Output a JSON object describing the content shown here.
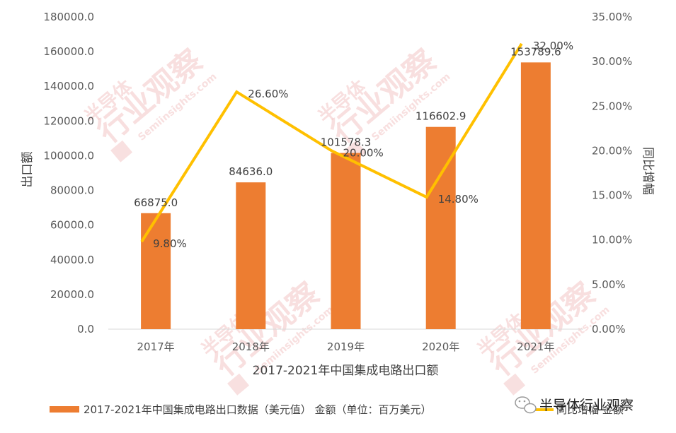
{
  "chart_data": {
    "type": "bar",
    "title": "",
    "categories": [
      "2017年",
      "2018年",
      "2019年",
      "2020年",
      "2021年"
    ],
    "series": [
      {
        "name": "2017-2021年中国集成电路出口数据（美元值） 金额（单位：百万美元）",
        "type": "bar",
        "axis": "left",
        "color": "#ed7d31",
        "values": [
          66875.0,
          84636.0,
          101578.3,
          116602.9,
          153789.6
        ],
        "labels": [
          "66875.0",
          "84636.0",
          "101578.3",
          "116602.9",
          "153789.6"
        ]
      },
      {
        "name": "同比增幅 金额",
        "type": "line",
        "axis": "right",
        "color": "#ffc000",
        "values": [
          9.8,
          26.6,
          20.0,
          14.8,
          32.0
        ],
        "labels": [
          "9.80%",
          "26.60%",
          "20.00%",
          "14.80%",
          "32.00%"
        ]
      }
    ],
    "xlabel": "2017-2021年中国集成电路出口额",
    "ylabel": "出口额",
    "y2label": "同比增幅",
    "ylim": [
      0,
      180000
    ],
    "y2lim": [
      0,
      35
    ],
    "yticks": [
      "0.0",
      "20000.0",
      "40000.0",
      "60000.0",
      "80000.0",
      "100000.0",
      "120000.0",
      "140000.0",
      "160000.0",
      "180000.0"
    ],
    "y2ticks": [
      "0.00%",
      "5.00%",
      "10.00%",
      "15.00%",
      "20.00%",
      "25.00%",
      "30.00%",
      "35.00%"
    ],
    "grid": false,
    "legend_position": "bottom"
  },
  "watermark": {
    "brand": "半导体",
    "title": "行业观察",
    "url": "Semiinsights.com"
  },
  "footer": {
    "account": "半导体行业观察",
    "icon": "wechat-icon"
  }
}
